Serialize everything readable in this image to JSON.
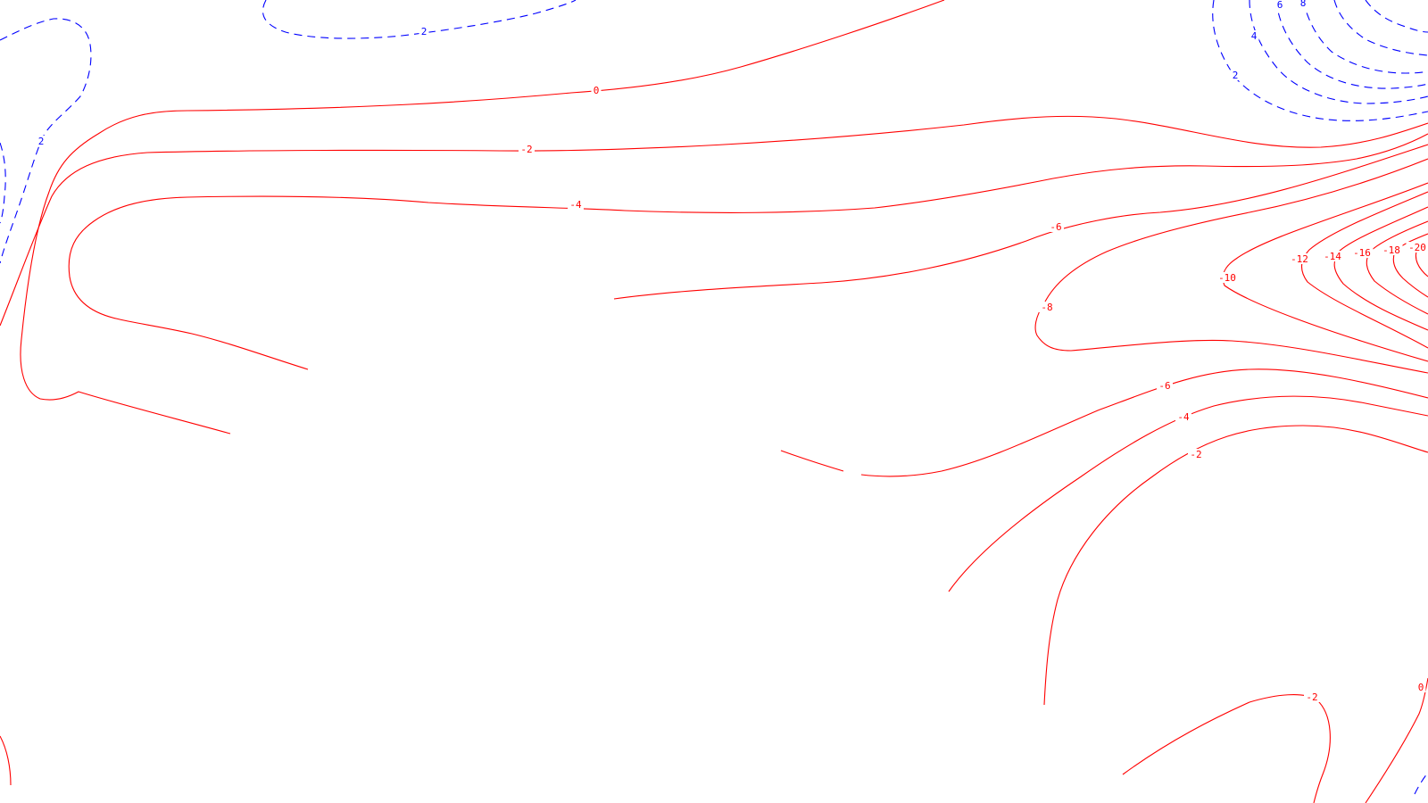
{
  "colors": {
    "negative": "#ff0000",
    "positive": "#0000ff",
    "background": "#ffffff"
  },
  "contours": {
    "negative_style": "solid",
    "positive_style": "dashed",
    "red_labels": [
      "0",
      "-2",
      "-4",
      "-6",
      "-8",
      "-10",
      "-12",
      "-14",
      "-16",
      "-18",
      "-20",
      "-6",
      "-4",
      "-2",
      "-2",
      "0"
    ],
    "blue_labels": [
      "2",
      "2",
      "2",
      "4",
      "6",
      "8"
    ]
  }
}
